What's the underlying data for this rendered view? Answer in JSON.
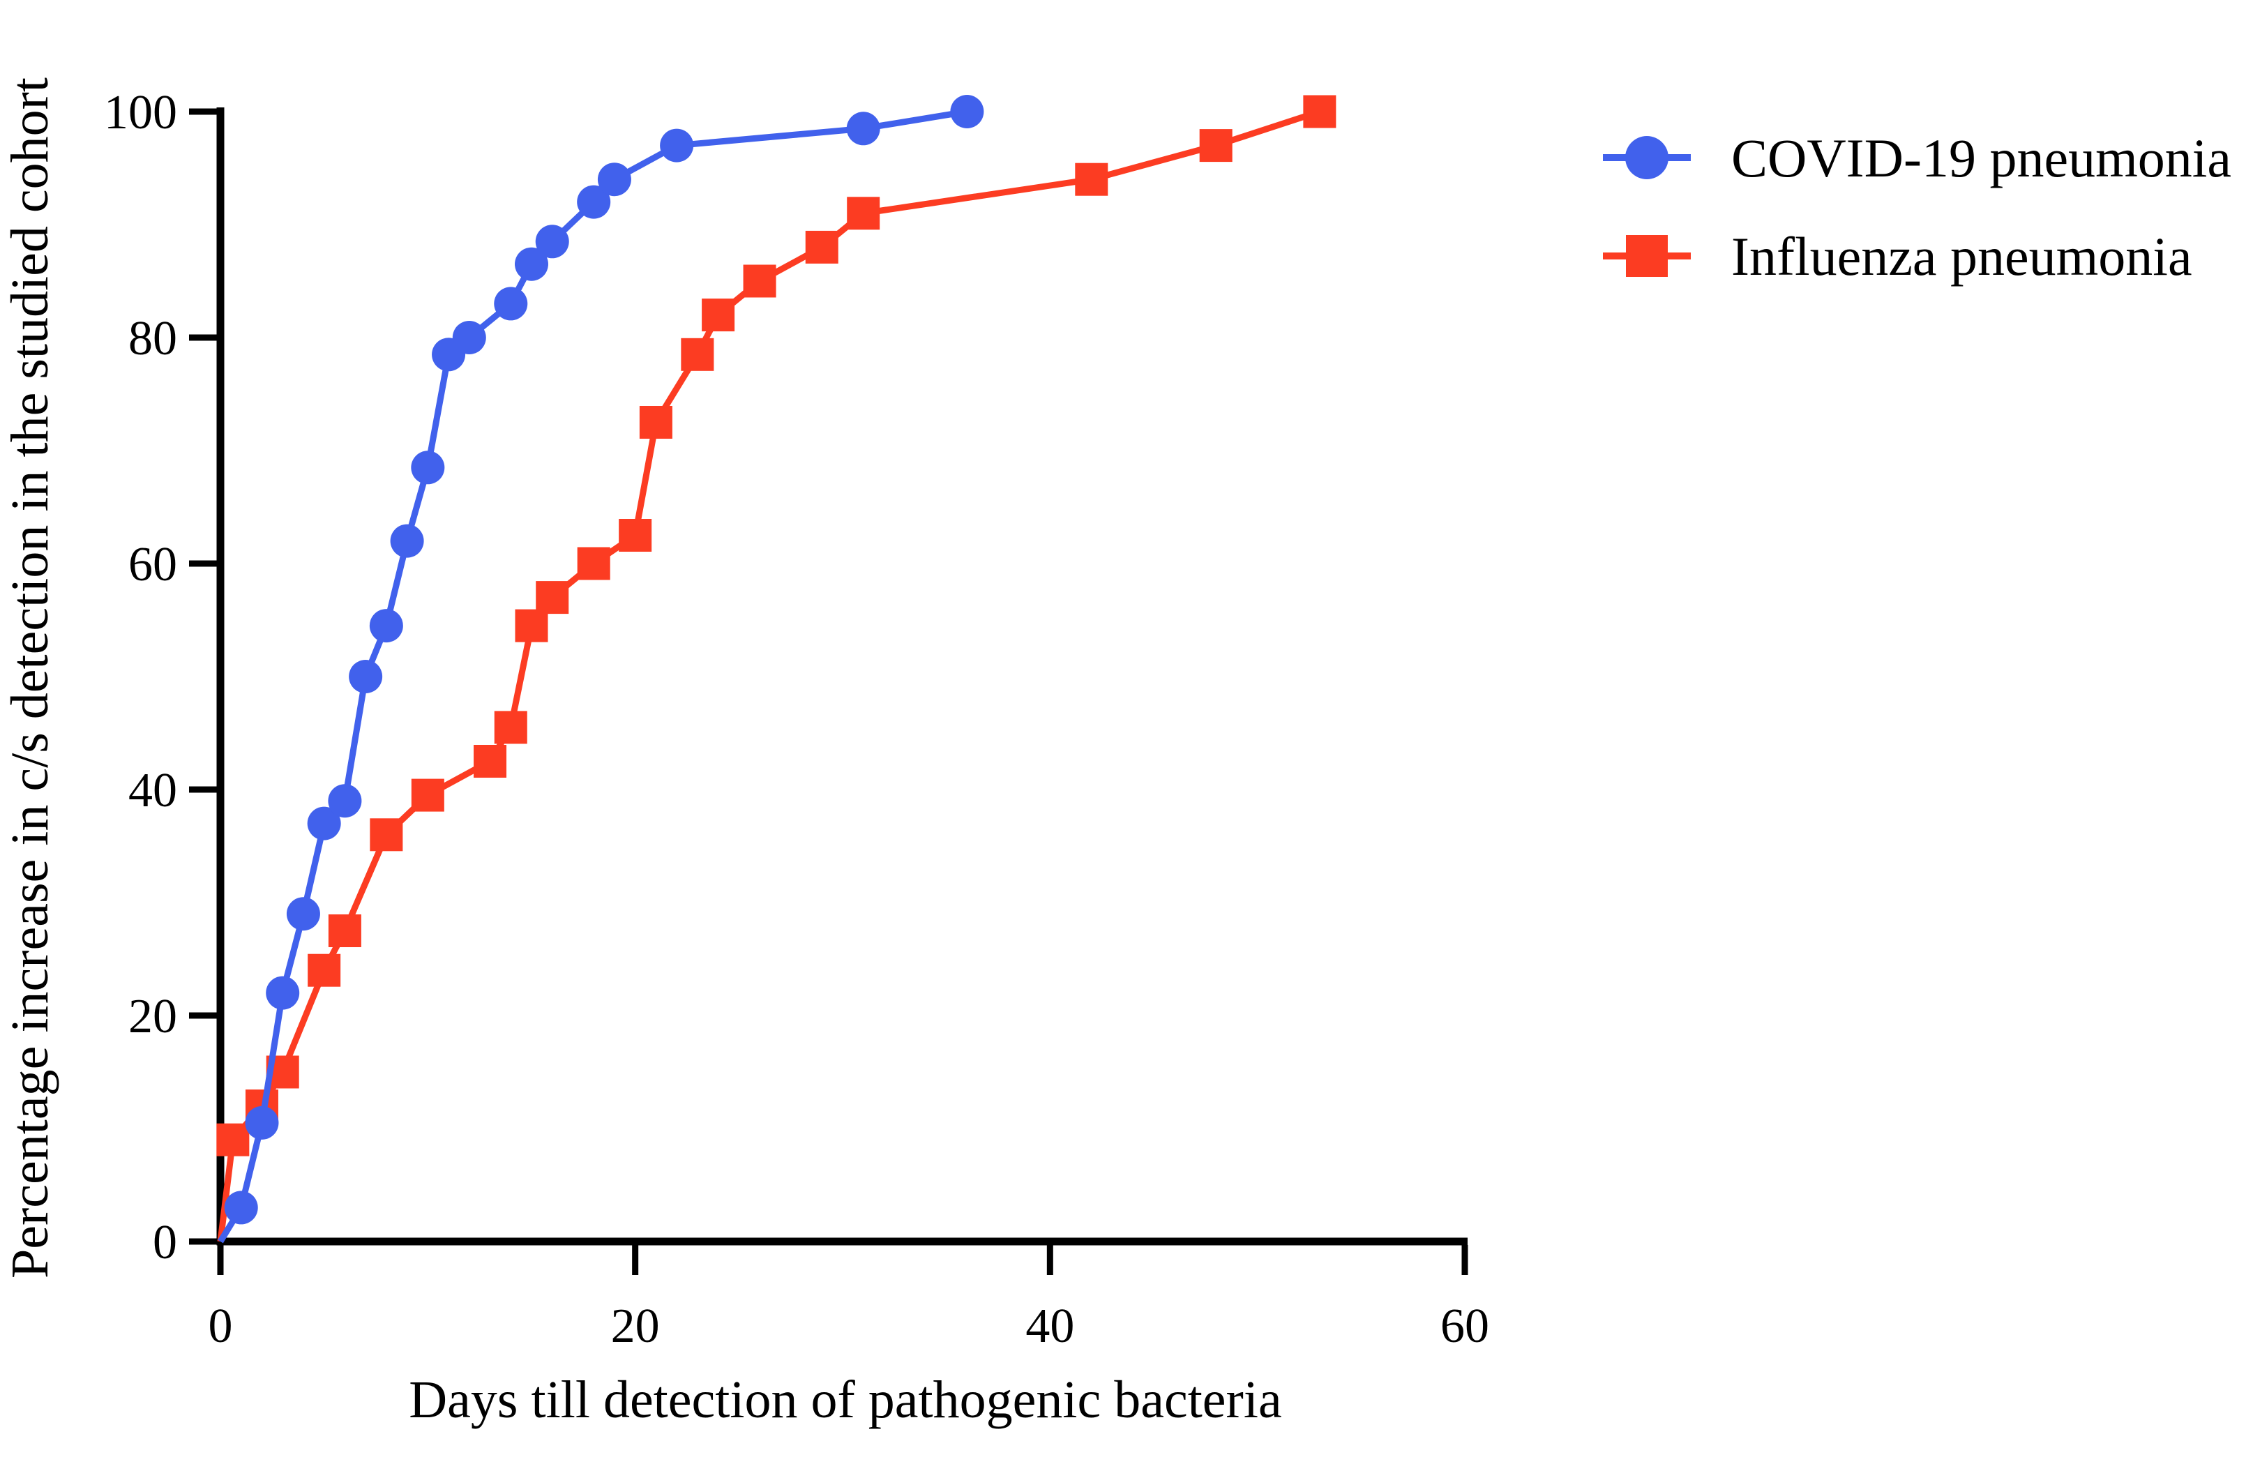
{
  "figure": {
    "background": "#FFFFFF",
    "text_color": "#000000",
    "axis_color": "#000000"
  },
  "chart_data": {
    "type": "line",
    "title": "",
    "xlabel": "Days till detection of pathogenic bacteria",
    "ylabel": "Percentage increase in c/s detection in the studied cohort",
    "xlim": [
      0,
      60
    ],
    "ylim": [
      0,
      100
    ],
    "x_ticks": [
      0,
      20,
      40,
      60
    ],
    "y_ticks": [
      0,
      20,
      40,
      60,
      80,
      100
    ],
    "grid": false,
    "legend_position": "outside-upper-right",
    "series": [
      {
        "name": "COVID-19 pneumonia",
        "color": "#4161EC",
        "marker": "circle",
        "line_from_origin": true,
        "points": [
          [
            1,
            3
          ],
          [
            2,
            10.5
          ],
          [
            3,
            22
          ],
          [
            4,
            29
          ],
          [
            5,
            37
          ],
          [
            6,
            39
          ],
          [
            7,
            50
          ],
          [
            8,
            54.5
          ],
          [
            9,
            62
          ],
          [
            10,
            68.5
          ],
          [
            11,
            78.5
          ],
          [
            12,
            80
          ],
          [
            14,
            83
          ],
          [
            15,
            86.5
          ],
          [
            16,
            88.5
          ],
          [
            18,
            92
          ],
          [
            19,
            94
          ],
          [
            22,
            97
          ],
          [
            31,
            98.5
          ],
          [
            36,
            100
          ]
        ]
      },
      {
        "name": "Influenza pneumonia",
        "color": "#FC3C22",
        "marker": "square",
        "line_from_origin": true,
        "points": [
          [
            0.6,
            9
          ],
          [
            2,
            12
          ],
          [
            3,
            15
          ],
          [
            5,
            24
          ],
          [
            6,
            27.5
          ],
          [
            8,
            36
          ],
          [
            10,
            39.5
          ],
          [
            13,
            42.5
          ],
          [
            14,
            45.5
          ],
          [
            15,
            54.5
          ],
          [
            16,
            57
          ],
          [
            18,
            60
          ],
          [
            20,
            62.5
          ],
          [
            21,
            72.5
          ],
          [
            23,
            78.5
          ],
          [
            24,
            82
          ],
          [
            26,
            85
          ],
          [
            29,
            88
          ],
          [
            31,
            91
          ],
          [
            42,
            94
          ],
          [
            48,
            97
          ],
          [
            53,
            100
          ]
        ]
      }
    ]
  }
}
